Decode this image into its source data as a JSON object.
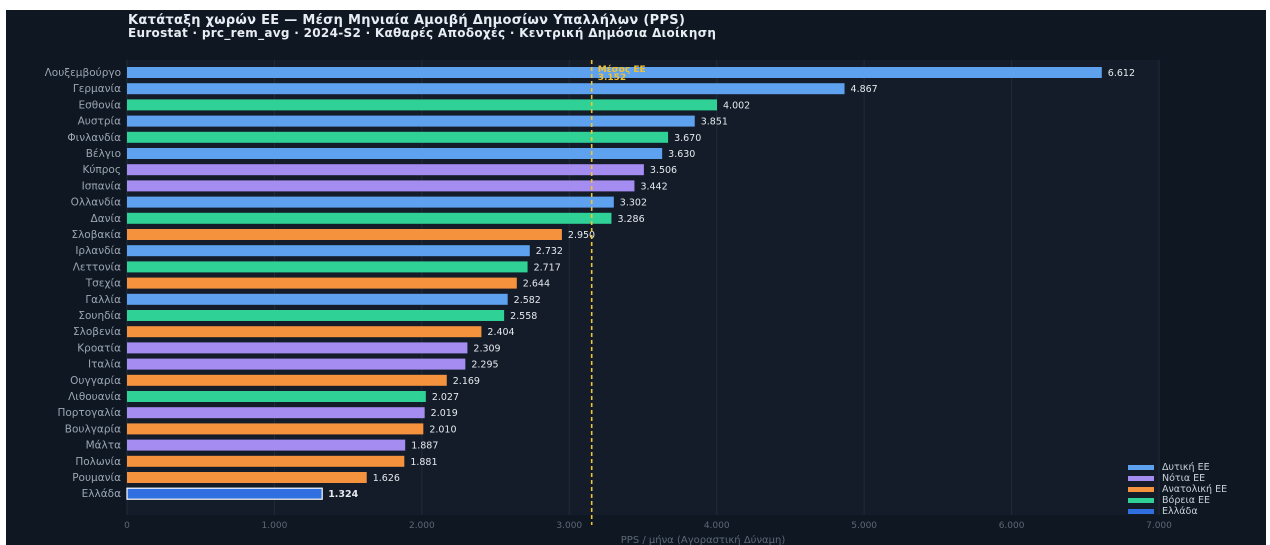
{
  "title": "Κατάταξη χωρών ΕΕ — Μέση Μηνιαία Αμοιβή Δημοσίων Υπαλλήλων (PPS)",
  "subtitle": "Eurostat · prc_rem_avg · 2024-S2 · Καθαρές Αποδοχές · Κεντρική Δημόσια Διοίκηση",
  "chart_data": {
    "type": "bar",
    "orientation": "horizontal",
    "title": "Κατάταξη χωρών ΕΕ — Μέση Μηνιαία Αμοιβή Δημοσίων Υπαλλήλων (PPS)",
    "subtitle": "Eurostat · prc_rem_avg · 2024-S2 · Καθαρές Αποδοχές · Κεντρική Δημόσια Διοίκηση",
    "xlabel": "PPS / μήνα  (Αγοραστική Δύναμη)",
    "ylabel": "",
    "xlim": [
      0,
      7000
    ],
    "xticks": [
      0,
      1000,
      2000,
      3000,
      4000,
      5000,
      6000,
      7000
    ],
    "xtick_labels": [
      "0",
      "1.000",
      "2.000",
      "3.000",
      "4.000",
      "5.000",
      "6.000",
      "7.000"
    ],
    "grid": true,
    "legend_position": "bottom-right",
    "average": {
      "label": "Μέσος ΕΕ",
      "value": 3152,
      "value_label": "3.152",
      "color": "#f2c230"
    },
    "groups": [
      {
        "name": "Δυτική ΕΕ",
        "color": "#5ea2ef"
      },
      {
        "name": "Νότια ΕΕ",
        "color": "#a48cf0"
      },
      {
        "name": "Ανατολική ΕΕ",
        "color": "#f5923e"
      },
      {
        "name": "Βόρεια ΕΕ",
        "color": "#2fd196"
      },
      {
        "name": "Ελλάδα",
        "color": "#2f6fe0"
      }
    ],
    "bars": [
      {
        "country": "Λουξεμβούργο",
        "value": 6612,
        "value_label": "6.612",
        "group": "Δυτική ΕΕ"
      },
      {
        "country": "Γερμανία",
        "value": 4867,
        "value_label": "4.867",
        "group": "Δυτική ΕΕ"
      },
      {
        "country": "Εσθονία",
        "value": 4002,
        "value_label": "4.002",
        "group": "Βόρεια ΕΕ"
      },
      {
        "country": "Αυστρία",
        "value": 3851,
        "value_label": "3.851",
        "group": "Δυτική ΕΕ"
      },
      {
        "country": "Φινλανδία",
        "value": 3670,
        "value_label": "3.670",
        "group": "Βόρεια ΕΕ"
      },
      {
        "country": "Βέλγιο",
        "value": 3630,
        "value_label": "3.630",
        "group": "Δυτική ΕΕ"
      },
      {
        "country": "Κύπρος",
        "value": 3506,
        "value_label": "3.506",
        "group": "Νότια ΕΕ"
      },
      {
        "country": "Ισπανία",
        "value": 3442,
        "value_label": "3.442",
        "group": "Νότια ΕΕ"
      },
      {
        "country": "Ολλανδία",
        "value": 3302,
        "value_label": "3.302",
        "group": "Δυτική ΕΕ"
      },
      {
        "country": "Δανία",
        "value": 3286,
        "value_label": "3.286",
        "group": "Βόρεια ΕΕ"
      },
      {
        "country": "Σλοβακία",
        "value": 2950,
        "value_label": "2.950",
        "group": "Ανατολική ΕΕ"
      },
      {
        "country": "Ιρλανδία",
        "value": 2732,
        "value_label": "2.732",
        "group": "Δυτική ΕΕ"
      },
      {
        "country": "Λεττονία",
        "value": 2717,
        "value_label": "2.717",
        "group": "Βόρεια ΕΕ"
      },
      {
        "country": "Τσεχία",
        "value": 2644,
        "value_label": "2.644",
        "group": "Ανατολική ΕΕ"
      },
      {
        "country": "Γαλλία",
        "value": 2582,
        "value_label": "2.582",
        "group": "Δυτική ΕΕ"
      },
      {
        "country": "Σουηδία",
        "value": 2558,
        "value_label": "2.558",
        "group": "Βόρεια ΕΕ"
      },
      {
        "country": "Σλοβενία",
        "value": 2404,
        "value_label": "2.404",
        "group": "Ανατολική ΕΕ"
      },
      {
        "country": "Κροατία",
        "value": 2309,
        "value_label": "2.309",
        "group": "Νότια ΕΕ"
      },
      {
        "country": "Ιταλία",
        "value": 2295,
        "value_label": "2.295",
        "group": "Νότια ΕΕ"
      },
      {
        "country": "Ουγγαρία",
        "value": 2169,
        "value_label": "2.169",
        "group": "Ανατολική ΕΕ"
      },
      {
        "country": "Λιθουανία",
        "value": 2027,
        "value_label": "2.027",
        "group": "Βόρεια ΕΕ"
      },
      {
        "country": "Πορτογαλία",
        "value": 2019,
        "value_label": "2.019",
        "group": "Νότια ΕΕ"
      },
      {
        "country": "Βουλγαρία",
        "value": 2010,
        "value_label": "2.010",
        "group": "Ανατολική ΕΕ"
      },
      {
        "country": "Μάλτα",
        "value": 1887,
        "value_label": "1.887",
        "group": "Νότια ΕΕ"
      },
      {
        "country": "Πολωνία",
        "value": 1881,
        "value_label": "1.881",
        "group": "Ανατολική ΕΕ"
      },
      {
        "country": "Ρουμανία",
        "value": 1626,
        "value_label": "1.626",
        "group": "Ανατολική ΕΕ"
      },
      {
        "country": "Ελλάδα",
        "value": 1324,
        "value_label": "1.324",
        "group": "Ελλάδα",
        "highlight": true
      }
    ]
  }
}
